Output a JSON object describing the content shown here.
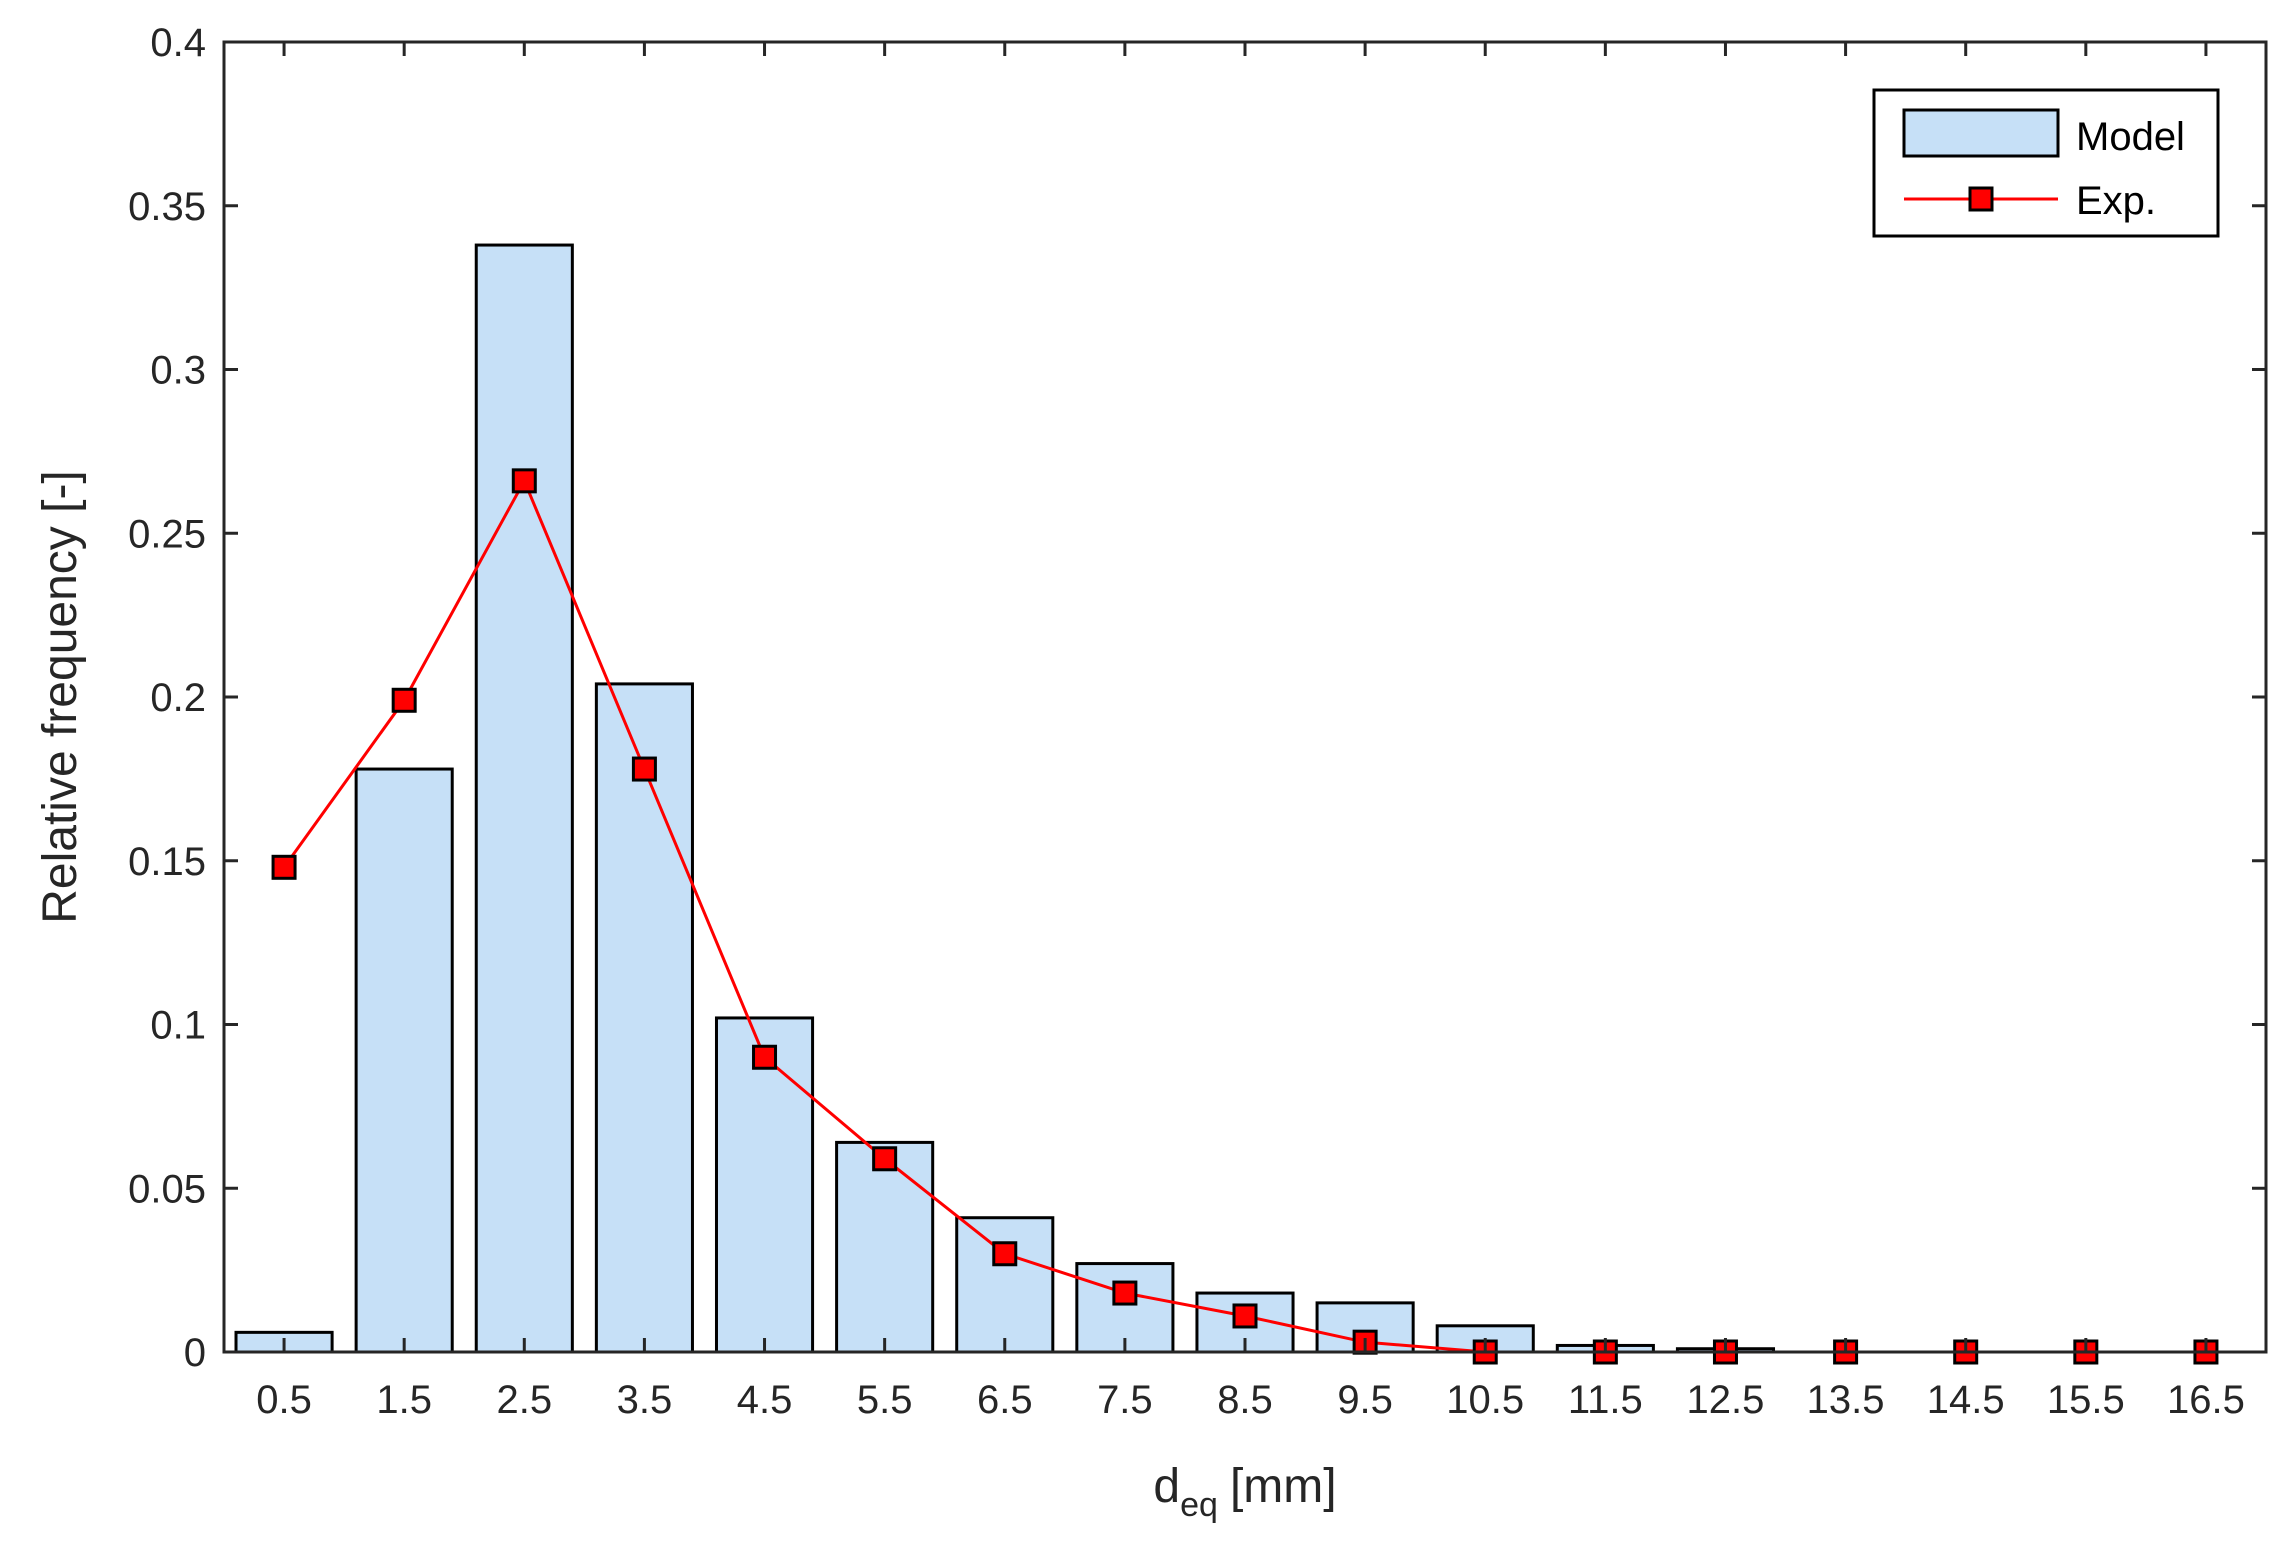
{
  "chart_data": {
    "type": "bar",
    "categories": [
      "0.5",
      "1.5",
      "2.5",
      "3.5",
      "4.5",
      "5.5",
      "6.5",
      "7.5",
      "8.5",
      "9.5",
      "10.5",
      "11.5",
      "12.5",
      "13.5",
      "14.5",
      "15.5",
      "16.5"
    ],
    "series": [
      {
        "name": "Model",
        "type": "bar",
        "color": "#c6e0f7",
        "values": [
          0.006,
          0.178,
          0.338,
          0.204,
          0.102,
          0.064,
          0.041,
          0.027,
          0.018,
          0.015,
          0.008,
          0.002,
          0.001,
          0,
          0,
          0,
          0
        ]
      },
      {
        "name": "Exp.",
        "type": "line",
        "color": "#ff0000",
        "marker": "square",
        "values": [
          0.148,
          0.199,
          0.266,
          0.178,
          0.09,
          0.059,
          0.03,
          0.018,
          0.011,
          0.003,
          0,
          0,
          0,
          0,
          0,
          0,
          0
        ]
      }
    ],
    "xlabel": "d",
    "xlabel_subscript": "eq",
    "xlabel_unit": "[mm]",
    "ylabel": "Relative frequency [-]",
    "ylim": [
      0,
      0.4
    ],
    "yticks": [
      "0",
      "0.05",
      "0.1",
      "0.15",
      "0.2",
      "0.25",
      "0.3",
      "0.35",
      "0.4"
    ],
    "grid": false,
    "legend_position": "top-right"
  }
}
